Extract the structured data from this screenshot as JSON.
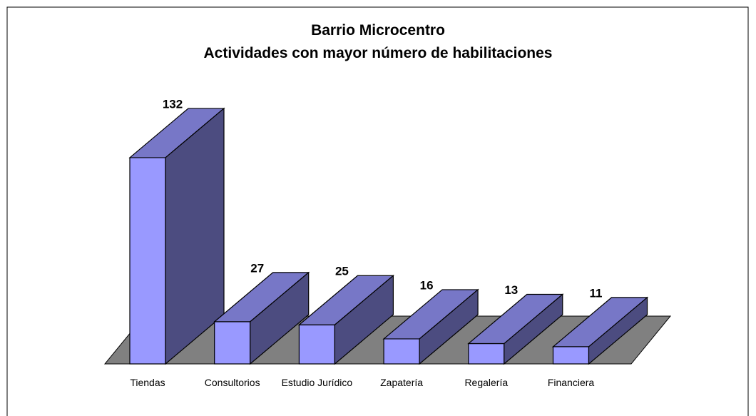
{
  "chart_data": {
    "type": "bar3d",
    "title": "Barrio Microcentro",
    "subtitle": "Actividades con mayor número de habilitaciones",
    "categories": [
      "Tiendas",
      "Consultorios",
      "Estudio Jurídico",
      "Zapatería",
      "Regalería",
      "Financiera"
    ],
    "values": [
      132,
      27,
      25,
      16,
      13,
      11
    ],
    "color": "#9999ff"
  }
}
